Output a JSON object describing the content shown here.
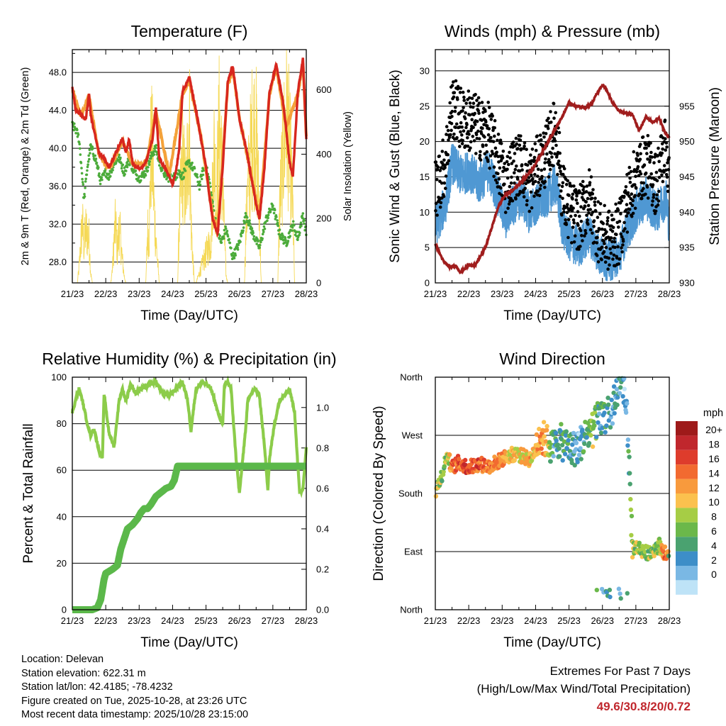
{
  "days": [
    "21/23",
    "22/23",
    "23/23",
    "24/23",
    "25/23",
    "26/23",
    "27/23",
    "28/23"
  ],
  "xlabel": "Time (Day/UTC)",
  "colors": {
    "temp2m": "#d7261e",
    "temp9m": "#f4a23a",
    "dew": "#4bab3a",
    "solar": "#f5d957",
    "wind": "#4f98d3",
    "gust": "#000000",
    "pressure": "#a01d1d",
    "rh": "#8ccc4a",
    "precip": "#5bb84a",
    "extreme": "#c0272d"
  },
  "chart_data": [
    {
      "type": "line",
      "title": "Temperature (F)",
      "xlabel": "Time (Day/UTC)",
      "ylabel_left": "2m & 9m T (Red, Orange) & 2m Td (Green)",
      "ylabel_right": "Solar Insolation (Yellow)",
      "ylim_left": [
        25.8,
        50.4
      ],
      "ylim_right": [
        0,
        725
      ],
      "yticks_left": [
        "28.0",
        "32.0",
        "36.0",
        "40.0",
        "44.0",
        "48.0"
      ],
      "yticks_right": [
        "0",
        "200",
        "400",
        "600"
      ],
      "series": [
        {
          "name": "2m T",
          "axis": "left",
          "x": [
            0,
            0.1,
            0.25,
            0.4,
            0.5,
            0.55,
            0.7,
            0.8,
            0.95,
            1.1,
            1.3,
            1.5,
            1.6,
            1.7,
            1.8,
            1.9,
            2.05,
            2.2,
            2.4,
            2.5,
            2.6,
            2.75,
            2.9,
            3.0,
            3.1,
            3.2,
            3.3,
            3.5,
            3.7,
            3.85,
            4.0,
            4.1,
            4.2,
            4.35,
            4.5,
            4.65,
            4.8,
            4.9,
            5.0,
            5.2,
            5.35,
            5.5,
            5.6,
            5.75,
            5.9,
            6.1,
            6.3,
            6.4,
            6.5,
            6.6,
            6.75,
            6.9,
            7.0
          ],
          "values": [
            46.5,
            44,
            43.6,
            43,
            45.8,
            43.5,
            41,
            39.5,
            39,
            38,
            39.5,
            41,
            39.5,
            41,
            38.5,
            38,
            37.8,
            38.5,
            41,
            44.2,
            39,
            38,
            37,
            36.2,
            37.5,
            40,
            46,
            47.5,
            44,
            41,
            38,
            35,
            32.5,
            31,
            38,
            47,
            48.6,
            46,
            43,
            40,
            37,
            34,
            32.5,
            38,
            46,
            48.8,
            45,
            42,
            38.5,
            37,
            46,
            49.4,
            41
          ]
        },
        {
          "name": "9m T",
          "axis": "left",
          "x": [
            0,
            0.25,
            0.5,
            0.8,
            1.1,
            1.5,
            1.8,
            2.2,
            2.5,
            2.9,
            3.3,
            3.5,
            3.85,
            4.2,
            4.35,
            4.65,
            4.8,
            5.0,
            5.35,
            5.6,
            5.9,
            6.1,
            6.4,
            6.75,
            6.9,
            7.0
          ],
          "values": [
            46.2,
            43.4,
            45.5,
            39.3,
            37.8,
            40.8,
            38.3,
            38.3,
            43.9,
            37.2,
            45.7,
            47.2,
            41.2,
            32.8,
            31.3,
            46.7,
            48.3,
            43.2,
            37.2,
            32.8,
            45.7,
            48.5,
            42.2,
            45.7,
            49.1,
            41.2
          ]
        },
        {
          "name": "2m Td",
          "axis": "left",
          "x": [
            0,
            0.1,
            0.2,
            0.3,
            0.35,
            0.45,
            0.55,
            0.7,
            0.85,
            1.0,
            1.1,
            1.25,
            1.4,
            1.55,
            1.7,
            1.85,
            2.0,
            2.2,
            2.4,
            2.5,
            2.6,
            2.8,
            3.0,
            3.2,
            3.3,
            3.4,
            3.5,
            3.6,
            3.7,
            3.8,
            3.9,
            4.0,
            4.1,
            4.2,
            4.3,
            4.45,
            4.6,
            4.8,
            5.0,
            5.2,
            5.4,
            5.6,
            5.8,
            6.0,
            6.2,
            6.4,
            6.6,
            6.75,
            6.9,
            7.0
          ],
          "values": [
            42.4,
            42,
            41,
            37,
            34.5,
            38,
            40.2,
            38.8,
            36.5,
            37.5,
            37,
            38.5,
            39,
            37.5,
            38.8,
            37.5,
            36.8,
            37.5,
            39.5,
            40,
            38.5,
            37,
            36.8,
            37.5,
            37,
            38,
            38.5,
            38,
            37.2,
            36,
            37.5,
            38,
            36.5,
            34,
            32,
            30,
            31.5,
            28.5,
            30,
            33,
            31,
            29.5,
            32.5,
            34,
            31,
            30,
            32,
            30.5,
            33,
            31
          ]
        },
        {
          "name": "Solar",
          "axis": "right",
          "x": [
            0.15,
            0.2,
            0.3,
            0.35,
            0.4,
            0.5,
            0.55,
            0.6,
            1.15,
            1.2,
            1.25,
            1.3,
            1.35,
            1.4,
            1.45,
            1.5,
            1.55,
            1.6,
            2.2,
            2.25,
            2.3,
            2.35,
            2.4,
            2.45,
            2.5,
            2.55,
            2.6,
            3.15,
            3.2,
            3.25,
            3.3,
            3.4,
            3.5,
            3.55,
            3.6,
            3.65,
            3.7,
            4.15,
            4.2,
            4.25,
            4.3,
            4.4,
            4.5,
            4.55,
            4.6,
            4.65,
            5.15,
            5.2,
            5.3,
            5.4,
            5.5,
            5.6,
            5.65,
            6.15,
            6.2,
            6.3,
            6.4,
            6.5,
            6.6,
            6.65
          ],
          "values": [
            0,
            60,
            250,
            150,
            220,
            180,
            40,
            0,
            0,
            60,
            180,
            250,
            120,
            240,
            170,
            90,
            30,
            0,
            0,
            220,
            180,
            560,
            520,
            300,
            180,
            90,
            0,
            0,
            250,
            380,
            500,
            360,
            710,
            250,
            120,
            0,
            0,
            180,
            400,
            560,
            300,
            660,
            400,
            200,
            30,
            0,
            0,
            250,
            480,
            640,
            600,
            280,
            0,
            0,
            300,
            520,
            700,
            560,
            300,
            0
          ]
        }
      ]
    },
    {
      "type": "line",
      "title": "Winds (mph) & Pressure (mb)",
      "xlabel": "Time (Day/UTC)",
      "ylabel_left": "Sonic Wind & Gust (Blue, Black)",
      "ylabel_right": "Station Pressure (Maroon)",
      "ylim_left": [
        0,
        33
      ],
      "ylim_right": [
        930,
        963
      ],
      "yticks_left": [
        "0",
        "5",
        "10",
        "15",
        "20",
        "25",
        "30"
      ],
      "yticks_right": [
        "930",
        "935",
        "940",
        "945",
        "950",
        "955"
      ],
      "series": [
        {
          "name": "Sonic Wind",
          "axis": "left",
          "x": [
            0,
            0.3,
            0.5,
            0.8,
            1.0,
            1.3,
            1.6,
            1.9,
            2.1,
            2.3,
            2.6,
            2.8,
            3.0,
            3.3,
            3.6,
            3.8,
            4.0,
            4.3,
            4.6,
            4.9,
            5.2,
            5.5,
            5.7,
            6.0,
            6.3,
            6.6,
            6.9,
            7.0
          ],
          "values": [
            8,
            11,
            17,
            15,
            16,
            14,
            16,
            12,
            9,
            11,
            12,
            10,
            11,
            12,
            14,
            8,
            6,
            5,
            7,
            4,
            3,
            4,
            7,
            10,
            12,
            10,
            12,
            8
          ]
        },
        {
          "name": "Gust",
          "axis": "left",
          "x": [
            0,
            0.3,
            0.5,
            0.8,
            1.0,
            1.3,
            1.6,
            1.9,
            2.1,
            2.3,
            2.6,
            2.8,
            3.0,
            3.3,
            3.6,
            3.8,
            4.0,
            4.3,
            4.6,
            4.9,
            5.2,
            5.5,
            5.7,
            6.0,
            6.3,
            6.6,
            6.9,
            7.0
          ],
          "values": [
            13,
            17,
            25,
            23,
            23,
            22,
            21,
            17,
            14,
            16,
            17,
            14,
            16,
            18,
            22,
            13,
            10,
            9,
            12,
            7,
            6,
            7,
            11,
            15,
            17,
            14,
            20,
            13
          ]
        },
        {
          "name": "Pressure",
          "axis": "right",
          "x": [
            0,
            0.1,
            0.25,
            0.45,
            0.6,
            0.75,
            1.0,
            1.2,
            1.5,
            1.7,
            1.9,
            2.1,
            2.3,
            2.6,
            2.9,
            3.2,
            3.5,
            3.8,
            4.0,
            4.2,
            4.5,
            4.7,
            4.8,
            5.0,
            5.1,
            5.3,
            5.5,
            5.7,
            5.9,
            6.1,
            6.3,
            6.5,
            6.7,
            6.85,
            7.0
          ],
          "values": [
            935.5,
            934.5,
            933,
            932.2,
            932.5,
            931.5,
            932.5,
            932.5,
            935,
            938,
            941,
            942.5,
            943,
            944.5,
            946,
            948.5,
            951,
            953.5,
            955.5,
            955,
            954.8,
            955.5,
            956.5,
            958,
            957.5,
            955.5,
            954.3,
            954,
            953.8,
            951.5,
            953.5,
            952.7,
            953.3,
            951.5,
            950.5
          ]
        }
      ]
    },
    {
      "type": "line",
      "title": "Relative Humidity (%) & Precipitation (in)",
      "xlabel": "Time (Day/UTC)",
      "ylabel": "Percent & Total Rainfall",
      "ylim_left": [
        0,
        100
      ],
      "ylim_right": [
        0,
        1.15
      ],
      "yticks_left": [
        "0",
        "20",
        "40",
        "60",
        "80",
        "100"
      ],
      "yticks_right": [
        "0.0",
        "0.2",
        "0.4",
        "0.6",
        "0.8",
        "1.0"
      ],
      "series": [
        {
          "name": "Relative Humidity",
          "axis": "left",
          "x": [
            0,
            0.1,
            0.2,
            0.3,
            0.45,
            0.55,
            0.65,
            0.8,
            0.9,
            0.95,
            1.1,
            1.25,
            1.4,
            1.5,
            1.6,
            1.75,
            1.9,
            2.05,
            2.2,
            2.5,
            2.7,
            2.9,
            3.1,
            3.3,
            3.45,
            3.55,
            3.7,
            3.9,
            4.0,
            4.1,
            4.2,
            4.35,
            4.5,
            4.55,
            4.65,
            4.75,
            4.9,
            5.0,
            5.1,
            5.2,
            5.25,
            5.3,
            5.45,
            5.6,
            5.75,
            5.85,
            5.9,
            6.05,
            6.2,
            6.3,
            6.5,
            6.65,
            6.8,
            6.9,
            7.0
          ],
          "values": [
            85,
            90,
            95,
            90,
            80,
            75,
            78,
            68,
            65,
            92,
            76,
            70,
            90,
            95,
            90,
            97,
            93,
            95,
            96,
            98,
            93,
            92,
            95,
            98,
            90,
            77,
            95,
            98,
            97,
            96,
            93,
            85,
            80,
            96,
            98,
            95,
            65,
            50,
            65,
            80,
            90,
            92,
            95,
            92,
            70,
            52,
            65,
            80,
            90,
            92,
            95,
            85,
            50,
            52,
            70
          ]
        },
        {
          "name": "Total Precipitation",
          "axis": "right",
          "x": [
            0,
            0.6,
            0.75,
            0.85,
            0.95,
            1.0,
            1.2,
            1.35,
            1.45,
            1.55,
            1.65,
            1.8,
            1.95,
            2.05,
            2.15,
            2.25,
            2.35,
            2.5,
            2.65,
            2.8,
            2.95,
            3.05,
            3.15,
            3.25,
            3.35,
            7.0
          ],
          "values": [
            0,
            0,
            0.01,
            0.05,
            0.15,
            0.18,
            0.2,
            0.22,
            0.3,
            0.35,
            0.4,
            0.42,
            0.45,
            0.48,
            0.5,
            0.5,
            0.52,
            0.56,
            0.58,
            0.6,
            0.61,
            0.64,
            0.71,
            0.71,
            0.71,
            0.71
          ]
        }
      ]
    },
    {
      "type": "scatter",
      "title": "Wind Direction",
      "xlabel": "Time (Day/UTC)",
      "ylabel": "Direction (Colored By Speed)",
      "yticks": [
        "North",
        "East",
        "South",
        "West",
        "North"
      ],
      "ylim": [
        0,
        360
      ],
      "legend_title": "mph",
      "legend_labels": [
        "20+",
        "18",
        "16",
        "14",
        "12",
        "10",
        "8",
        "6",
        "4",
        "2",
        "0"
      ],
      "legend_colors": [
        "#9e1a1a",
        "#c0272d",
        "#de3c2c",
        "#f26a30",
        "#f89a3d",
        "#fbc14e",
        "#a6cd45",
        "#6bb84a",
        "#4aa270",
        "#3d8ec8",
        "#7ab8e4",
        "#bee3f7"
      ],
      "points_guide": {
        "x": [
          0,
          0.1,
          0.2,
          0.35,
          0.5,
          0.7,
          1.0,
          1.3,
          1.6,
          1.9,
          2.1,
          2.4,
          2.6,
          2.8,
          2.95,
          3.1,
          3.3,
          3.5,
          3.7,
          3.9,
          4.1,
          4.3,
          4.5,
          4.7,
          4.9,
          5.1,
          5.3,
          5.5,
          5.7,
          5.9,
          6.1,
          6.3,
          6.5,
          6.7,
          6.9,
          7.0
        ],
        "dir": [
          180,
          195,
          210,
          240,
          220,
          228,
          220,
          226,
          222,
          230,
          236,
          242,
          238,
          233,
          240,
          270,
          262,
          250,
          262,
          255,
          248,
          254,
          270,
          278,
          300,
          300,
          310,
          350,
          330,
          98,
          95,
          88,
          92,
          100,
          85,
          80
        ],
        "speed": [
          9,
          10,
          8,
          9,
          16,
          17,
          18,
          17,
          16,
          14,
          13,
          12,
          11,
          13,
          12,
          14,
          14,
          6,
          5,
          6,
          4,
          3,
          6,
          9,
          4,
          5,
          3,
          4,
          3,
          9,
          10,
          8,
          9,
          10,
          17,
          7
        ]
      }
    }
  ],
  "info": {
    "location": "Location: Delevan",
    "elevation": "Station elevation: 622.31 m",
    "latlon": "Station lat/lon: 42.4185; -78.4232",
    "created": "Figure created on Tue, 2025-10-28, at 23:26 UTC",
    "recent": "Most recent data timestamp: 2025/10/28 23:15:00"
  },
  "extremes": {
    "title": "Extremes For Past 7 Days",
    "subtitle": "(High/Low/Max Wind/Total Precipitation)",
    "values": "49.6/30.8/20/0.72"
  }
}
